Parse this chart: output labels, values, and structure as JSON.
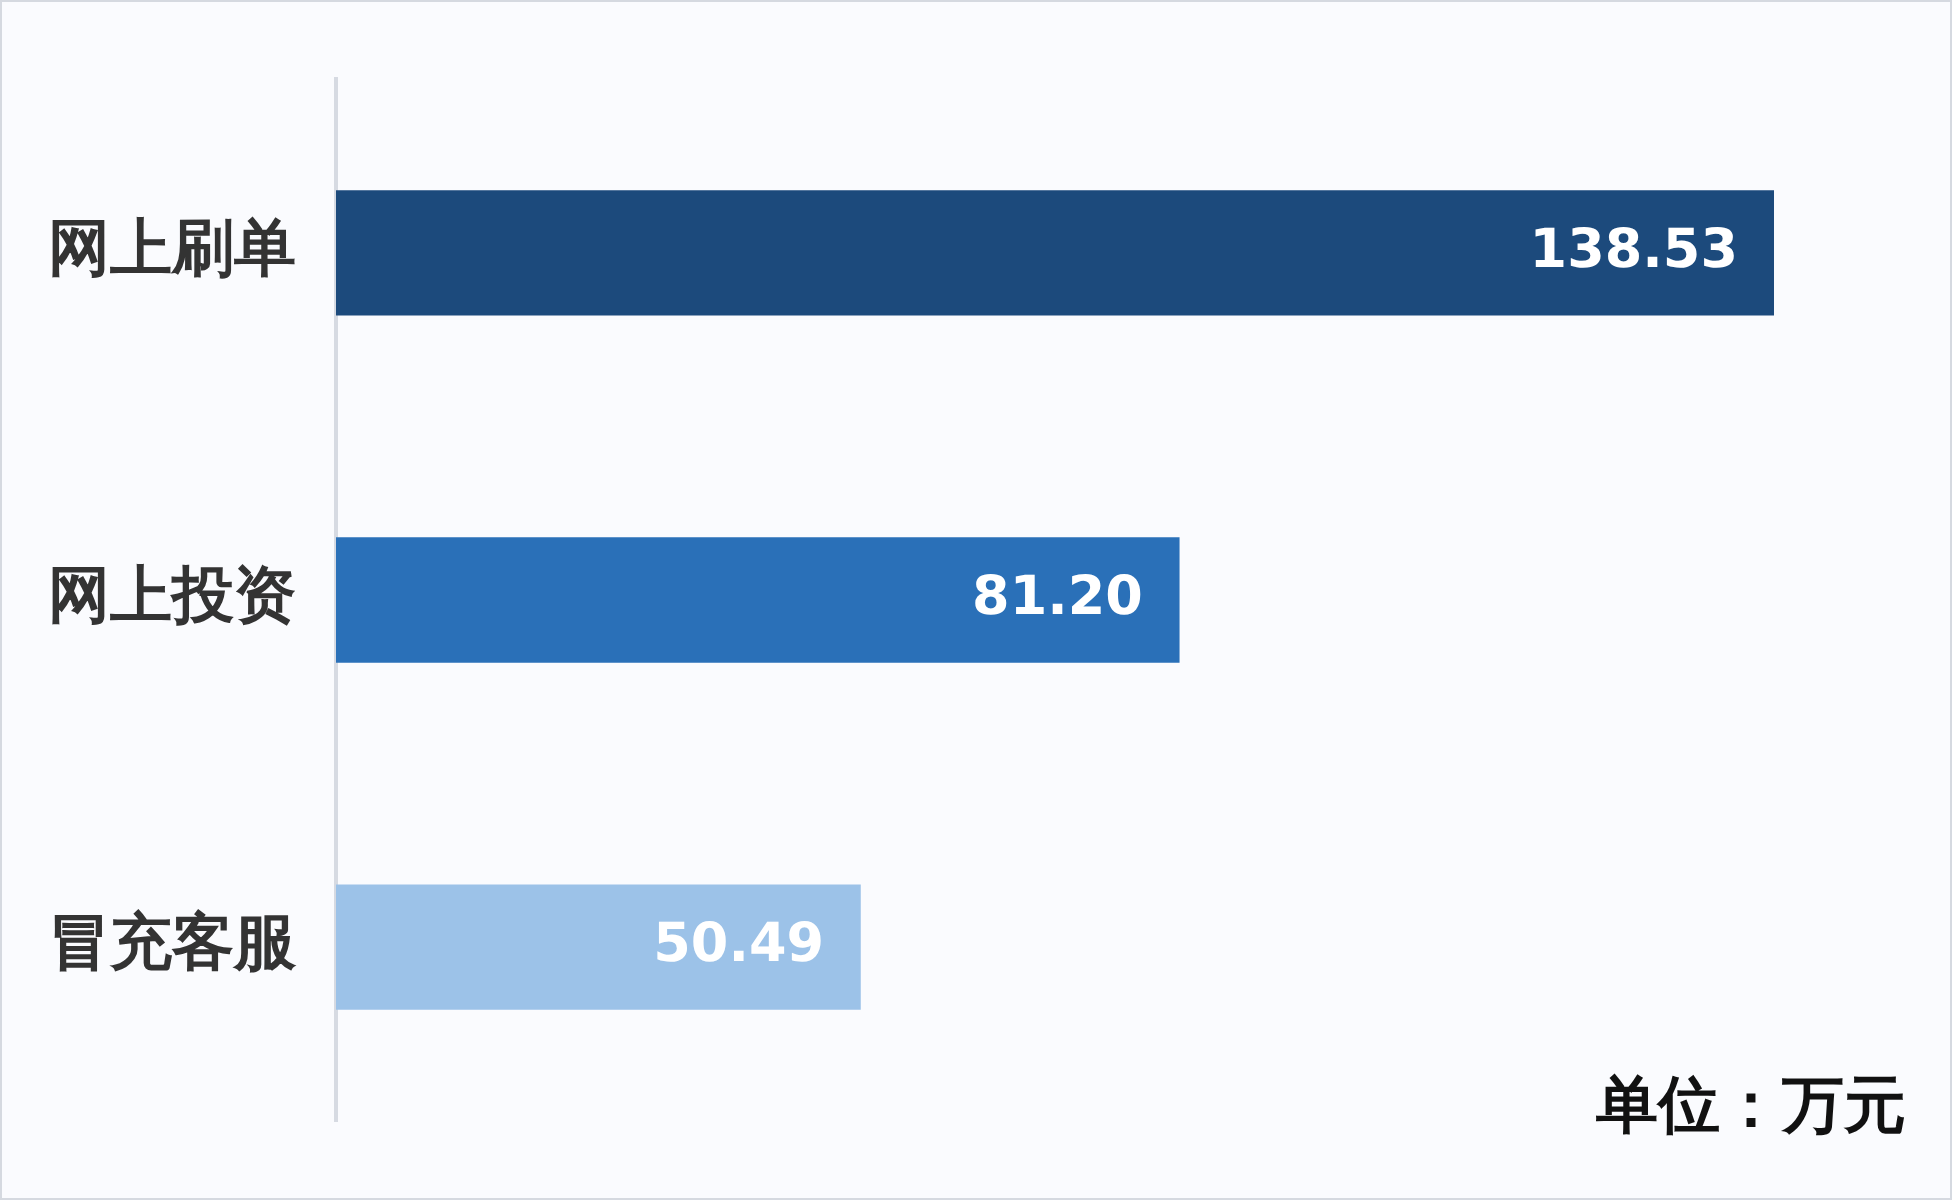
{
  "chart_data": {
    "type": "bar",
    "orientation": "horizontal",
    "categories": [
      "网上刷单",
      "网上投资",
      "冒充客服"
    ],
    "values": [
      138.53,
      81.2,
      50.49
    ],
    "colors": [
      "#1c4a7c",
      "#2a70b8",
      "#9cc2e8"
    ],
    "value_labels": [
      "138.53",
      "81.20",
      "50.49"
    ],
    "tick_labels": "y",
    "annotations": [
      "单位：万元"
    ]
  }
}
